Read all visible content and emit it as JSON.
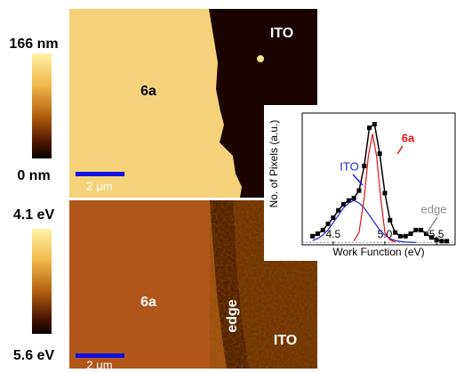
{
  "panels": {
    "top": {
      "colorbar_max": "166 nm",
      "colorbar_min": "0 nm",
      "sample": "6a",
      "substrate": "ITO",
      "scale": "2 μm"
    },
    "bottom": {
      "colorbar_max": "4.1 eV",
      "colorbar_min": "5.6 eV",
      "sample": "6a",
      "edge": "edge",
      "substrate": "ITO",
      "scale": "2 μm"
    }
  },
  "chart_data": {
    "type": "line",
    "x_label": "Work Function (eV)",
    "y_label": "No. of Pixels (a.u.)",
    "xlim": [
      4.2,
      5.68
    ],
    "ylim": [
      -0.02,
      1.05
    ],
    "xticks": [
      4.5,
      {
        "value": 5.0,
        "label": "5.0"
      },
      5.5
    ],
    "series": [
      {
        "color": "#000000",
        "marker": "square",
        "x": [
          4.3,
          4.35,
          4.4,
          4.45,
          4.5,
          4.55,
          4.6,
          4.65,
          4.7,
          4.75,
          4.8,
          4.85,
          4.9,
          4.95,
          5.0,
          5.05,
          5.1,
          5.15,
          5.2,
          5.25,
          5.3,
          5.35,
          5.4,
          5.45,
          5.5,
          5.55,
          5.6
        ],
        "values": [
          0.05,
          0.07,
          0.1,
          0.15,
          0.2,
          0.26,
          0.31,
          0.34,
          0.36,
          0.42,
          0.62,
          0.93,
          0.96,
          0.72,
          0.4,
          0.18,
          0.08,
          0.05,
          0.05,
          0.07,
          0.1,
          0.1,
          0.07,
          0.04,
          0.02,
          0.01,
          0.01
        ]
      },
      {
        "color": "#1f1fd0",
        "x": [
          4.3,
          4.35,
          4.4,
          4.45,
          4.5,
          4.55,
          4.6,
          4.65,
          4.7,
          4.75,
          4.8,
          4.85,
          4.9,
          4.95,
          5.0,
          5.05,
          5.1,
          5.15,
          5.2,
          5.25,
          5.3
        ],
        "values": [
          0.015,
          0.03,
          0.06,
          0.1,
          0.16,
          0.22,
          0.28,
          0.32,
          0.34,
          0.32,
          0.28,
          0.22,
          0.16,
          0.1,
          0.06,
          0.03,
          0.015,
          0.007,
          0.003,
          0.001,
          0
        ]
      },
      {
        "color": "#e01010",
        "x": [
          4.7,
          4.75,
          4.8,
          4.84,
          4.88,
          4.92,
          4.96,
          5.0,
          5.05,
          5.1
        ],
        "values": [
          0.01,
          0.08,
          0.36,
          0.7,
          0.88,
          0.7,
          0.36,
          0.08,
          0.02,
          0.003
        ]
      }
    ],
    "annotations": [
      {
        "text": "ITO",
        "color": "#1f1fd0"
      },
      {
        "text": "6a",
        "color": "#e01010"
      },
      {
        "text": "edge",
        "color": "#8a8a8a"
      }
    ]
  }
}
